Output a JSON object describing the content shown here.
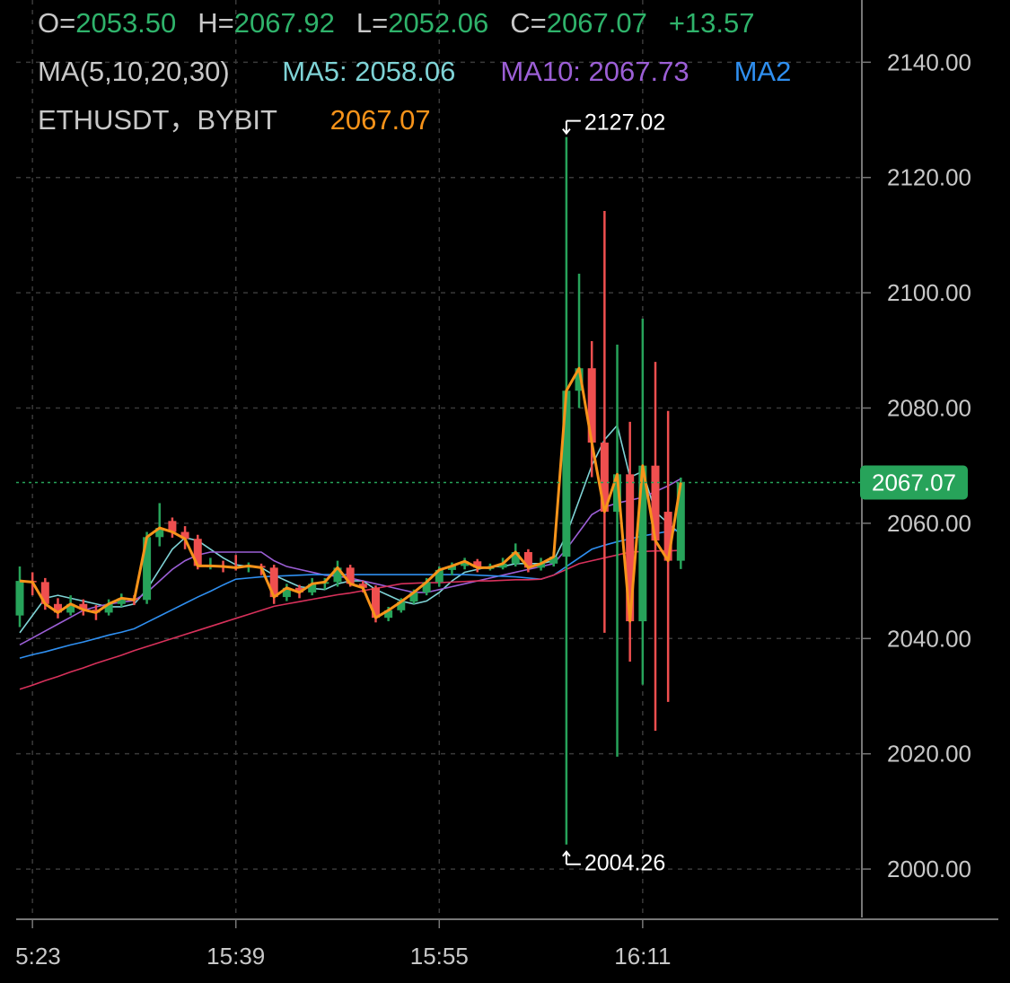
{
  "header": {
    "ohlc": [
      {
        "label": "O=",
        "value": "2053.50"
      },
      {
        "label": "H=",
        "value": "2067.92"
      },
      {
        "label": "L=",
        "value": "2052.06"
      },
      {
        "label": "C=",
        "value": "2067.07"
      }
    ],
    "change": "+13.57",
    "ma_title": "MA(5,10,20,30)",
    "ma_items": [
      {
        "text": "MA5: 2058.06",
        "color": "#7fd3d6"
      },
      {
        "text": "MA10: 2067.73",
        "color": "#9c5fd6"
      },
      {
        "text": "MA2",
        "color": "#2f8ff0"
      }
    ],
    "symbol": "ETHUSDT，BYBIT",
    "price": "2067.07"
  },
  "chart_data": {
    "type": "candlestick",
    "up_color": "#27a35a",
    "down_color": "#ef4f4f",
    "close_line_color": "#f7931a",
    "grid": true,
    "y_axis_side": "right",
    "categories": [
      null,
      "5:23",
      null,
      null,
      null,
      null,
      null,
      null,
      null,
      null,
      null,
      null,
      null,
      null,
      null,
      null,
      null,
      "15:39",
      null,
      null,
      null,
      null,
      null,
      null,
      null,
      null,
      null,
      null,
      null,
      null,
      null,
      null,
      null,
      "15:55",
      null,
      null,
      null,
      null,
      null,
      null,
      null,
      null,
      null,
      null,
      null,
      null,
      null,
      null,
      null,
      "16:11",
      null,
      null,
      null
    ],
    "open": [
      2044,
      2050,
      2049.8,
      2046,
      2044.5,
      2046,
      2045,
      2044.5,
      2046,
      2047,
      2046.7,
      2057.6,
      2060.4,
      2058.5,
      2057.3,
      2052.6,
      2052.6,
      2052.5,
      2052.3,
      2052.6,
      2052.3,
      2047.2,
      2048.8,
      2048,
      2049.5,
      2049.8,
      2052.3,
      2049.5,
      2048.8,
      2043.6,
      2044.9,
      2046.4,
      2048,
      2049.8,
      2051.9,
      2052.6,
      2053.4,
      2052.3,
      2052.3,
      2053,
      2055,
      2052.3,
      2053,
      2054.2,
      2083,
      2086.9,
      2074,
      2062,
      2068.5,
      2043,
      2070,
      2062,
      2053.5
    ],
    "high": [
      2052.5,
      2051.5,
      2050.5,
      2047,
      2047.5,
      2046.8,
      2045.8,
      2046.8,
      2047.8,
      2047.5,
      2058.5,
      2063.5,
      2061,
      2059.5,
      2058,
      2054,
      2053.5,
      2054.5,
      2053.2,
      2053,
      2052.8,
      2049.5,
      2049.3,
      2050.5,
      2050.5,
      2053.5,
      2052.8,
      2050,
      2049.2,
      2045.5,
      2047,
      2048.5,
      2050.5,
      2052.5,
      2053.2,
      2054,
      2053.8,
      2053,
      2054,
      2056.5,
      2055.5,
      2054,
      2055,
      2127.02,
      2103.3,
      2091.6,
      2114.2,
      2091,
      2077.6,
      2095.5,
      2088,
      2079.5,
      2067.92
    ],
    "low": [
      2042,
      2047.5,
      2045,
      2043.5,
      2044,
      2044,
      2043.2,
      2044,
      2045.5,
      2045.8,
      2046,
      2056,
      2057.5,
      2055.5,
      2052,
      2052,
      2051.5,
      2051.8,
      2051.5,
      2051,
      2046,
      2046.5,
      2047,
      2047.5,
      2048.5,
      2049,
      2049,
      2048,
      2042.8,
      2043,
      2044.5,
      2046,
      2047.5,
      2049,
      2051,
      2052,
      2051.5,
      2051.8,
      2052,
      2052.5,
      2051.5,
      2051.8,
      2052.5,
      2004.26,
      2080,
      2068,
      2041,
      2019.5,
      2036,
      2032,
      2024,
      2029,
      2052.06
    ],
    "close": [
      2050,
      2049.8,
      2046,
      2044.5,
      2046,
      2045,
      2044.5,
      2046,
      2047,
      2046.7,
      2057.6,
      2059.2,
      2058.5,
      2057.3,
      2052.6,
      2052.6,
      2052.5,
      2052.3,
      2052.6,
      2052.3,
      2047.2,
      2048.8,
      2048,
      2049.5,
      2049.8,
      2052.3,
      2049.5,
      2048.8,
      2043.6,
      2044.9,
      2046.4,
      2048,
      2049.8,
      2051.9,
      2052.6,
      2053.4,
      2052.3,
      2052.3,
      2053,
      2055,
      2052.3,
      2053,
      2054.2,
      2083,
      2086.9,
      2074,
      2062,
      2068.5,
      2043,
      2070,
      2057,
      2053.5,
      2067.07
    ],
    "ma_series": [
      {
        "color": "#7fd3d6",
        "values": [
          2041,
          2044,
          2047,
          2047.5,
          2047,
          2046.5,
          2046,
          2045.5,
          2045.5,
          2046,
          2048.5,
          2052,
          2055.5,
          2057.5,
          2057,
          2055.5,
          2054,
          2052.8,
          2052.5,
          2052.3,
          2051,
          2050,
          2049,
          2048.7,
          2048.5,
          2049.5,
          2050,
          2050,
          2048.5,
          2047.5,
          2046.5,
          2046,
          2046.5,
          2048,
          2050,
          2051.5,
          2052,
          2052.5,
          2052.5,
          2053,
          2053,
          2053,
          2053.5,
          2058,
          2064,
          2070,
          2074.5,
          2077,
          2068,
          2069,
          2062,
          2060,
          2058.06
        ]
      },
      {
        "color": "#9c5fd6",
        "values": [
          2038.9,
          2040.1,
          2041.3,
          2042.5,
          2043.7,
          2044.9,
          2045.5,
          2046,
          2046.3,
          2046.6,
          2048,
          2050,
          2052,
          2053.5,
          2054.5,
          2055,
          2055,
          2055,
          2055,
          2055,
          2053.5,
          2052.5,
          2052,
          2051.5,
          2051,
          2050.8,
          2050.5,
          2050,
          2049.5,
          2049,
          2048.5,
          2048,
          2048,
          2048.5,
          2049,
          2049.5,
          2050,
          2050.5,
          2051,
          2051.5,
          2052,
          2052.5,
          2053,
          2055.5,
          2058.5,
          2061.5,
          2062.8,
          2063.5,
          2064,
          2064.5,
          2065.5,
          2066.5,
          2067.73
        ]
      },
      {
        "color": "#2f8ff0",
        "values": [
          2036.6,
          2037.2,
          2037.7,
          2038.3,
          2038.9,
          2039.4,
          2040,
          2040.6,
          2041.1,
          2041.7,
          2042.8,
          2043.9,
          2045,
          2046.1,
          2047.2,
          2048.2,
          2049.3,
          2050.3,
          2050.5,
          2050.7,
          2050.8,
          2050.9,
          2051,
          2051.1,
          2051.1,
          2051.1,
          2051.1,
          2051.1,
          2051.1,
          2051.1,
          2051.1,
          2051.1,
          2051.1,
          2051.1,
          2051.1,
          2051.1,
          2051,
          2050.9,
          2050.8,
          2050.7,
          2050.5,
          2050.3,
          2051,
          2052.5,
          2054,
          2055.5,
          2056.2,
          2056.8,
          2057.3,
          2057.8,
          2058.2,
          2058.6,
          2058.9
        ]
      },
      {
        "color": "#d8315b",
        "values": [
          2031.2,
          2031.9,
          2032.7,
          2033.4,
          2034.2,
          2034.9,
          2035.7,
          2036.4,
          2037.1,
          2037.9,
          2038.6,
          2039.3,
          2040,
          2040.7,
          2041.4,
          2042.1,
          2042.8,
          2043.5,
          2044.2,
          2044.9,
          2045.6,
          2046,
          2046.4,
          2046.8,
          2047.2,
          2047.6,
          2047.9,
          2048.3,
          2048.7,
          2049.1,
          2049.5,
          2049.6,
          2049.7,
          2049.7,
          2049.8,
          2049.9,
          2050,
          2050,
          2050.1,
          2050.2,
          2050.2,
          2050.3,
          2051,
          2052,
          2053,
          2053.5,
          2054,
          2054.5,
          2055,
          2055.1,
          2055.2,
          2055.2,
          2055.3
        ]
      }
    ],
    "ylim": [
      1991.6,
      2150.8
    ],
    "yticks": [
      {
        "value": 2000,
        "label": "2000.00"
      },
      {
        "value": 2020,
        "label": "2020.00"
      },
      {
        "value": 2040,
        "label": "2040.00"
      },
      {
        "value": 2060,
        "label": "2060.00"
      },
      {
        "value": 2080,
        "label": "2080.00"
      },
      {
        "value": 2100,
        "label": "2100.00"
      },
      {
        "value": 2120,
        "label": "2120.00"
      },
      {
        "value": 2140,
        "label": "2140.00"
      }
    ]
  }
}
